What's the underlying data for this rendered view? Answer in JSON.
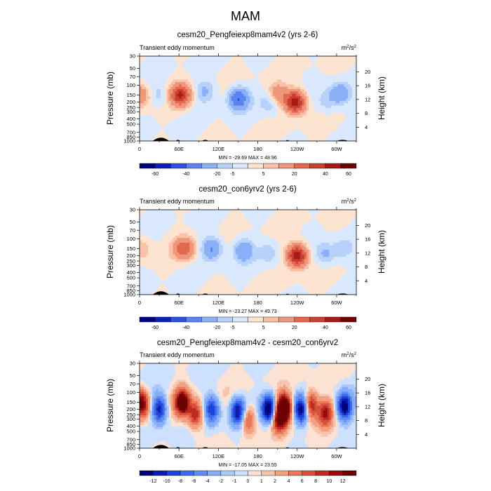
{
  "figure_title": "MAM",
  "chart_data": [
    {
      "type": "heatmap",
      "title": "cesm20_Pengfeiexp8mam4v2 (yrs 2-6)",
      "subtitle": "Transient eddy momentum",
      "units": "m²/s²",
      "ylabel": "Pressure (mb)",
      "y2label": "Height (km)",
      "x_tick_labels": [
        "0",
        "60E",
        "120E",
        "180",
        "120W",
        "60W"
      ],
      "x_tick_lons": [
        0,
        60,
        120,
        180,
        240,
        300
      ],
      "xlim": [
        0,
        330
      ],
      "y_tick_labels": [
        "30",
        "50",
        "70",
        "100",
        "150",
        "200",
        "250",
        "300",
        "400",
        "500",
        "700",
        "850",
        "1000"
      ],
      "y_tick_values": [
        30,
        50,
        70,
        100,
        150,
        200,
        250,
        300,
        400,
        500,
        700,
        850,
        1000
      ],
      "ylim_mb": [
        30,
        1000
      ],
      "y2_tick_labels": [
        "20",
        "16",
        "12",
        "8",
        "4"
      ],
      "y2_tick_values": [
        20,
        16,
        12,
        8,
        4
      ],
      "stats": "MIN = -29.69  MAX = 48.96",
      "min": -29.69,
      "max": 48.96,
      "colorbar_levels": [
        "-60",
        "-40",
        "-20",
        "-5",
        "5",
        "20",
        "40",
        "60"
      ],
      "features": [
        {
          "lon": 0,
          "p": 150,
          "value": 20
        },
        {
          "lon": 62,
          "p": 150,
          "value": 40
        },
        {
          "lon": 30,
          "p": 150,
          "value": -8
        },
        {
          "lon": 150,
          "p": 175,
          "value": -30
        },
        {
          "lon": 100,
          "p": 130,
          "value": -12
        },
        {
          "lon": 210,
          "p": 150,
          "value": 20
        },
        {
          "lon": 237,
          "p": 200,
          "value": 48.96
        },
        {
          "lon": 200,
          "p": 200,
          "value": -12
        },
        {
          "lon": 305,
          "p": 140,
          "value": -18
        },
        {
          "lon": 285,
          "p": 200,
          "value": -8
        }
      ]
    },
    {
      "type": "heatmap",
      "title": "cesm20_con6yrv2 (yrs 2-6)",
      "subtitle": "Transient eddy momentum",
      "units": "m²/s²",
      "ylabel": "Pressure (mb)",
      "y2label": "Height (km)",
      "x_tick_labels": [
        "0",
        "60E",
        "120E",
        "180",
        "120W",
        "60W"
      ],
      "x_tick_lons": [
        0,
        60,
        120,
        180,
        240,
        300
      ],
      "xlim": [
        0,
        330
      ],
      "y_tick_labels": [
        "30",
        "50",
        "70",
        "100",
        "150",
        "200",
        "250",
        "300",
        "400",
        "500",
        "700",
        "850",
        "1000"
      ],
      "y_tick_values": [
        30,
        50,
        70,
        100,
        150,
        200,
        250,
        300,
        400,
        500,
        700,
        850,
        1000
      ],
      "ylim_mb": [
        30,
        1000
      ],
      "y2_tick_labels": [
        "20",
        "16",
        "12",
        "8",
        "4"
      ],
      "y2_tick_values": [
        20,
        16,
        12,
        8,
        4
      ],
      "stats": "MIN = -23.27  MAX = 49.73",
      "min": -23.27,
      "max": 49.73,
      "colorbar_levels": [
        "-60",
        "-40",
        "-20",
        "-5",
        "5",
        "20",
        "40",
        "60"
      ],
      "features": [
        {
          "lon": 2,
          "p": 150,
          "value": 10
        },
        {
          "lon": 68,
          "p": 150,
          "value": 28
        },
        {
          "lon": 110,
          "p": 150,
          "value": -22
        },
        {
          "lon": 158,
          "p": 160,
          "value": -18
        },
        {
          "lon": 197,
          "p": 180,
          "value": -8
        },
        {
          "lon": 240,
          "p": 200,
          "value": 49.73
        },
        {
          "lon": 283,
          "p": 190,
          "value": -12
        },
        {
          "lon": 310,
          "p": 150,
          "value": -8
        }
      ]
    },
    {
      "type": "heatmap",
      "title": "cesm20_Pengfeiexp8mam4v2 - cesm20_con6yrv2",
      "subtitle": "Transient eddy momentum",
      "units": "m²/s²",
      "ylabel": "Pressure (mb)",
      "y2label": "Height (km)",
      "x_tick_labels": [
        "0",
        "60E",
        "120E",
        "180",
        "120W",
        "60W"
      ],
      "x_tick_lons": [
        0,
        60,
        120,
        180,
        240,
        300
      ],
      "xlim": [
        0,
        330
      ],
      "y_tick_labels": [
        "30",
        "50",
        "70",
        "100",
        "150",
        "200",
        "250",
        "300",
        "400",
        "500",
        "700",
        "850",
        "1000"
      ],
      "y_tick_values": [
        30,
        50,
        70,
        100,
        150,
        200,
        250,
        300,
        400,
        500,
        700,
        850,
        1000
      ],
      "ylim_mb": [
        30,
        1000
      ],
      "y2_tick_labels": [
        "20",
        "16",
        "12",
        "8",
        "4"
      ],
      "y2_tick_values": [
        20,
        16,
        12,
        8,
        4
      ],
      "stats": "MIN = -17.05  MAX = 23.55",
      "min": -17.05,
      "max": 23.55,
      "colorbar_levels": [
        "-12",
        "-10",
        "-8",
        "-6",
        "-4",
        "-2",
        "-1",
        "0",
        "1",
        "2",
        "4",
        "6",
        "8",
        "10",
        "12"
      ],
      "features": [
        {
          "lon": 3,
          "p": 160,
          "value": 14
        },
        {
          "lon": 30,
          "p": 200,
          "value": -12
        },
        {
          "lon": 65,
          "p": 150,
          "value": 16
        },
        {
          "lon": 85,
          "p": 250,
          "value": 10
        },
        {
          "lon": 110,
          "p": 200,
          "value": -10
        },
        {
          "lon": 150,
          "p": 220,
          "value": -12
        },
        {
          "lon": 165,
          "p": 300,
          "value": 8
        },
        {
          "lon": 197,
          "p": 200,
          "value": -16
        },
        {
          "lon": 220,
          "p": 190,
          "value": 20
        },
        {
          "lon": 212,
          "p": 300,
          "value": 12
        },
        {
          "lon": 247,
          "p": 200,
          "value": -14
        },
        {
          "lon": 260,
          "p": 170,
          "value": 12
        },
        {
          "lon": 283,
          "p": 230,
          "value": 10
        },
        {
          "lon": 312,
          "p": 180,
          "value": -14
        }
      ]
    }
  ],
  "colors": {
    "abs_palette": [
      "#02037a",
      "#0a20b8",
      "#2a53e0",
      "#5b84f0",
      "#8ab0f8",
      "#b7d1fb",
      "#d9e8fc",
      "#fde4d0",
      "#f8c1a8",
      "#f0967a",
      "#e06950",
      "#c83f2f",
      "#a81a16",
      "#6e0000"
    ],
    "diff_palette": [
      "#02037a",
      "#0a1fb0",
      "#1f43d8",
      "#3d6aec",
      "#5f8df4",
      "#86aef8",
      "#aac7fb",
      "#cde0fd",
      "#fbe2d2",
      "#f7c5ad",
      "#f2a07f",
      "#e77859",
      "#d7513a",
      "#bd2a20",
      "#960c0c",
      "#6e0000"
    ],
    "topography": "#000000"
  }
}
